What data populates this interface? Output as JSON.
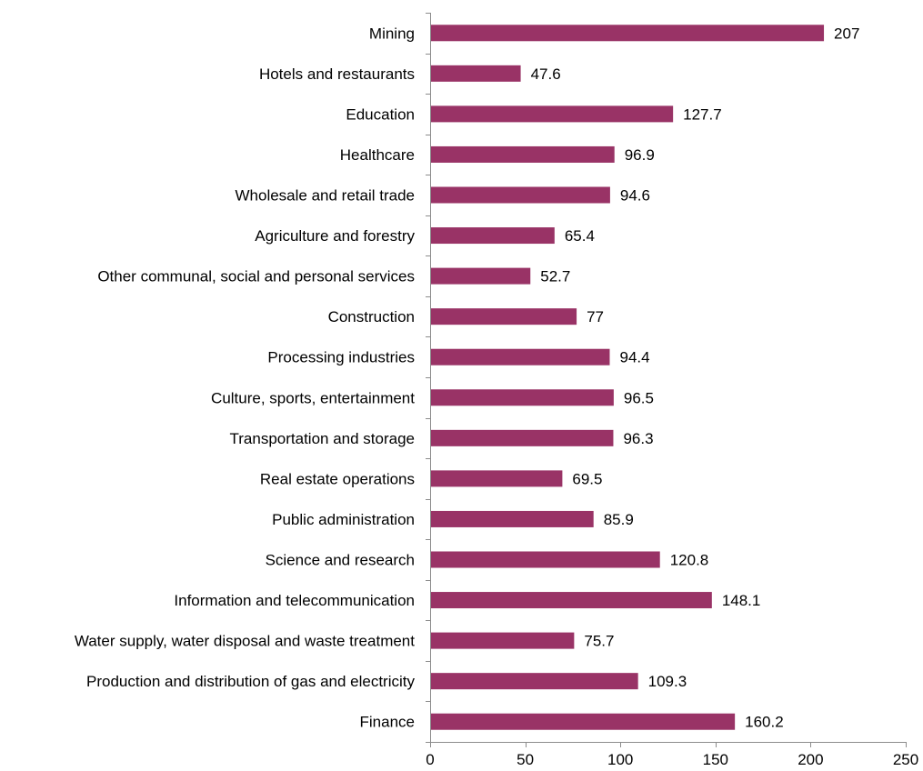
{
  "chart_data": {
    "type": "bar",
    "orientation": "horizontal",
    "categories": [
      "Mining",
      "Hotels and restaurants",
      "Education",
      "Healthcare",
      "Wholesale and retail trade",
      "Agriculture and forestry",
      "Other communal, social and personal services",
      "Construction",
      "Processing industries",
      "Culture, sports, entertainment",
      "Transportation and storage",
      "Real estate operations",
      "Public administration",
      "Science and research",
      "Information and telecommunication",
      "Water supply, water disposal and waste treatment",
      "Production and distribution of gas and electricity",
      "Finance"
    ],
    "values": [
      207,
      47.6,
      127.7,
      96.9,
      94.6,
      65.4,
      52.7,
      77,
      94.4,
      96.5,
      96.3,
      69.5,
      85.9,
      120.8,
      148.1,
      75.7,
      109.3,
      160.2
    ],
    "value_labels": [
      "207",
      "47.6",
      "127.7",
      "96.9",
      "94.6",
      "65.4",
      "52.7",
      "77",
      "94.4",
      "96.5",
      "96.3",
      "69.5",
      "85.9",
      "120.8",
      "148.1",
      "75.7",
      "109.3",
      "160.2"
    ],
    "x_ticks": [
      0,
      50,
      100,
      150,
      200,
      250
    ],
    "xlim": [
      0,
      250
    ],
    "title": "",
    "xlabel": "",
    "ylabel": "",
    "grid": false,
    "legend": "none",
    "bar_color": "#993366"
  }
}
